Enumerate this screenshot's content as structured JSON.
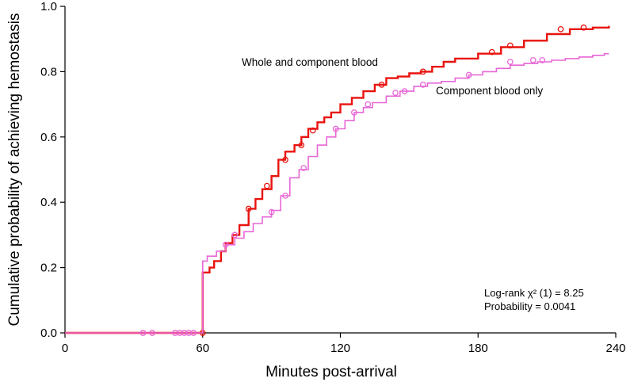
{
  "chart_data": {
    "type": "line",
    "xlabel": "Minutes post-arrival",
    "ylabel": "Cumulative probability of achieving hemostasis",
    "xlim": [
      0,
      240
    ],
    "ylim": [
      0,
      1.0
    ],
    "x_ticks": [
      "0",
      "60",
      "120",
      "180",
      "240"
    ],
    "y_ticks": [
      "0.0",
      "0.2",
      "0.4",
      "0.6",
      "0.8",
      "1.0"
    ],
    "grid": false,
    "series": [
      {
        "name": "Whole and component blood",
        "color": "#e8130e",
        "points": [
          [
            0,
            0
          ],
          [
            60,
            0
          ],
          [
            60,
            0.185
          ],
          [
            63,
            0.2
          ],
          [
            65,
            0.22
          ],
          [
            68,
            0.25
          ],
          [
            70,
            0.275
          ],
          [
            73,
            0.3
          ],
          [
            76,
            0.33
          ],
          [
            80,
            0.38
          ],
          [
            83,
            0.41
          ],
          [
            86,
            0.44
          ],
          [
            90,
            0.48
          ],
          [
            93,
            0.53
          ],
          [
            96,
            0.555
          ],
          [
            100,
            0.575
          ],
          [
            103,
            0.6
          ],
          [
            106,
            0.625
          ],
          [
            110,
            0.645
          ],
          [
            113,
            0.66
          ],
          [
            116,
            0.675
          ],
          [
            120,
            0.7
          ],
          [
            125,
            0.72
          ],
          [
            130,
            0.74
          ],
          [
            135,
            0.76
          ],
          [
            140,
            0.78
          ],
          [
            145,
            0.785
          ],
          [
            150,
            0.795
          ],
          [
            155,
            0.8
          ],
          [
            160,
            0.815
          ],
          [
            165,
            0.83
          ],
          [
            170,
            0.84
          ],
          [
            180,
            0.855
          ],
          [
            190,
            0.875
          ],
          [
            200,
            0.895
          ],
          [
            210,
            0.915
          ],
          [
            220,
            0.93
          ],
          [
            230,
            0.935
          ],
          [
            237,
            0.94
          ]
        ],
        "censor_marks": [
          [
            60,
            0
          ],
          [
            80,
            0.38
          ],
          [
            88,
            0.45
          ],
          [
            96,
            0.53
          ],
          [
            103,
            0.575
          ],
          [
            108,
            0.62
          ],
          [
            138,
            0.76
          ],
          [
            156,
            0.8
          ],
          [
            186,
            0.86
          ],
          [
            194,
            0.88
          ],
          [
            216,
            0.93
          ],
          [
            226,
            0.935
          ]
        ]
      },
      {
        "name": "Component blood only",
        "color": "#e866d6",
        "points": [
          [
            0,
            0
          ],
          [
            60,
            0
          ],
          [
            60,
            0.22
          ],
          [
            62,
            0.235
          ],
          [
            66,
            0.25
          ],
          [
            70,
            0.27
          ],
          [
            74,
            0.29
          ],
          [
            78,
            0.31
          ],
          [
            82,
            0.335
          ],
          [
            86,
            0.355
          ],
          [
            90,
            0.375
          ],
          [
            94,
            0.42
          ],
          [
            98,
            0.475
          ],
          [
            102,
            0.5
          ],
          [
            106,
            0.54
          ],
          [
            110,
            0.575
          ],
          [
            114,
            0.6
          ],
          [
            118,
            0.625
          ],
          [
            122,
            0.65
          ],
          [
            126,
            0.675
          ],
          [
            130,
            0.69
          ],
          [
            134,
            0.705
          ],
          [
            140,
            0.725
          ],
          [
            146,
            0.74
          ],
          [
            152,
            0.755
          ],
          [
            158,
            0.765
          ],
          [
            164,
            0.77
          ],
          [
            170,
            0.78
          ],
          [
            176,
            0.79
          ],
          [
            182,
            0.8
          ],
          [
            188,
            0.81
          ],
          [
            194,
            0.82
          ],
          [
            200,
            0.825
          ],
          [
            206,
            0.83
          ],
          [
            212,
            0.835
          ],
          [
            218,
            0.84
          ],
          [
            224,
            0.845
          ],
          [
            230,
            0.85
          ],
          [
            235,
            0.855
          ],
          [
            237,
            0.855
          ]
        ],
        "censor_marks": [
          [
            34,
            0
          ],
          [
            38,
            0
          ],
          [
            48,
            0
          ],
          [
            50,
            0
          ],
          [
            52,
            0
          ],
          [
            54,
            0
          ],
          [
            56,
            0
          ],
          [
            70,
            0.27
          ],
          [
            74,
            0.3
          ],
          [
            90,
            0.37
          ],
          [
            96,
            0.42
          ],
          [
            104,
            0.505
          ],
          [
            118,
            0.625
          ],
          [
            126,
            0.675
          ],
          [
            132,
            0.7
          ],
          [
            144,
            0.735
          ],
          [
            148,
            0.74
          ],
          [
            156,
            0.76
          ],
          [
            176,
            0.79
          ],
          [
            194,
            0.83
          ],
          [
            204,
            0.835
          ],
          [
            208,
            0.835
          ]
        ]
      }
    ],
    "annotations": {
      "logrank": "Log-rank χ² (1) = 8.25",
      "probability": "Probability = 0.0041"
    }
  }
}
